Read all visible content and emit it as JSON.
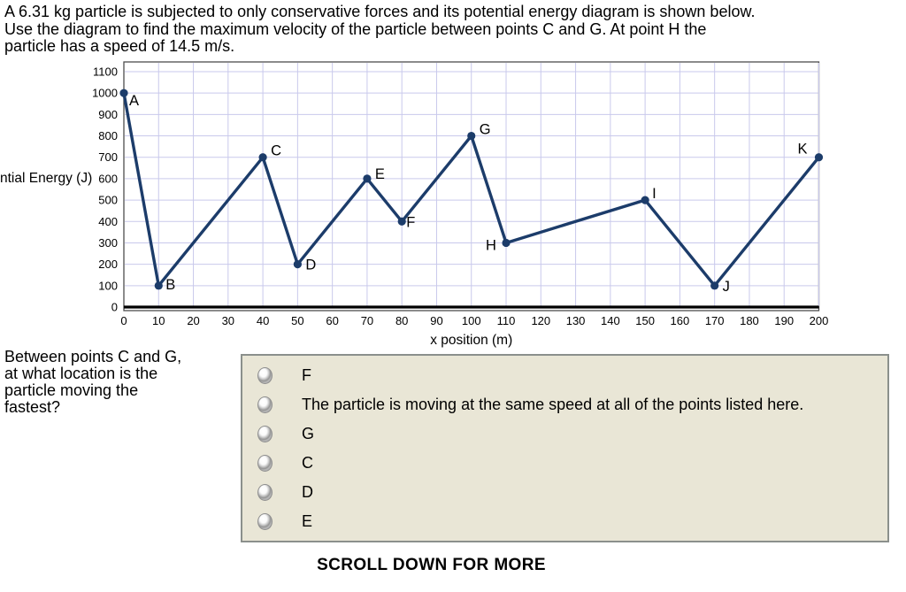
{
  "problem": {
    "lines": [
      "A 6.31 kg particle is subjected to only conservative forces and its potential energy diagram is shown below.",
      "Use the diagram to find the maximum velocity of the particle between points C and G. At point H the",
      "particle has a speed of 14.5 m/s."
    ]
  },
  "chart_data": {
    "type": "line",
    "title": "",
    "xlabel": "x position (m)",
    "ylabel": "ntial Energy (J)",
    "xlim": [
      0,
      200
    ],
    "ylim": [
      0,
      1100
    ],
    "x_tick_step": 10,
    "y_tick_step": 100,
    "grid": true,
    "legend": "none",
    "line_color": "#1c3c6a",
    "grid_color": "#c9c9ec",
    "frame_color": "#4d4d4d",
    "points": [
      {
        "label": "A",
        "x": 0,
        "y": 1000
      },
      {
        "label": "B",
        "x": 10,
        "y": 100
      },
      {
        "label": "C",
        "x": 40,
        "y": 700
      },
      {
        "label": "D",
        "x": 50,
        "y": 200
      },
      {
        "label": "E",
        "x": 70,
        "y": 600
      },
      {
        "label": "F",
        "x": 80,
        "y": 400
      },
      {
        "label": "G",
        "x": 100,
        "y": 800
      },
      {
        "label": "H",
        "x": 110,
        "y": 300
      },
      {
        "label": "I",
        "x": 150,
        "y": 500
      },
      {
        "label": "J",
        "x": 170,
        "y": 100
      },
      {
        "label": "K",
        "x": 200,
        "y": 700
      }
    ]
  },
  "question": {
    "lines": [
      "Between points C and G,",
      "at what location is the",
      "particle moving the",
      "fastest?"
    ]
  },
  "options": [
    {
      "label": "F",
      "selected": false
    },
    {
      "label": "The particle is moving at the same speed at all of the points listed here.",
      "selected": false
    },
    {
      "label": "G",
      "selected": false
    },
    {
      "label": "C",
      "selected": false
    },
    {
      "label": "D",
      "selected": false
    },
    {
      "label": "E",
      "selected": false
    }
  ],
  "footer": {
    "scroll_note": "SCROLL DOWN FOR MORE"
  }
}
